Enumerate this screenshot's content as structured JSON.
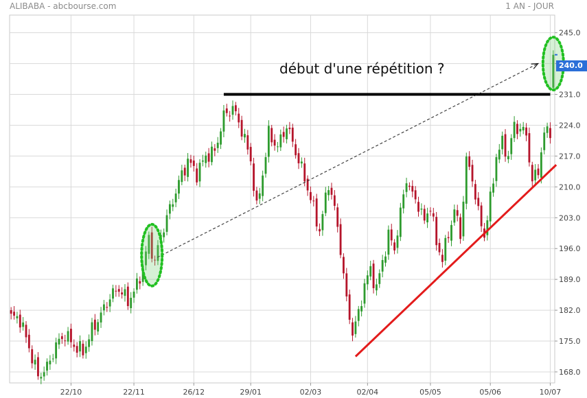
{
  "header": {
    "title": "ALIBABA - abcbourse.com",
    "period": "1 AN - JOUR"
  },
  "annotation": "début d'une répétition ?",
  "last_price": "240.0",
  "colors": {
    "up": "#2e9b2e",
    "down": "#b5152b",
    "grid": "#d9d9d9",
    "resistance": "#000000",
    "support": "#e31b1b",
    "highlight": "#22c022",
    "badge": "#2b6fd8"
  },
  "chart_data": {
    "type": "candlestick",
    "ylim": [
      165.5,
      249
    ],
    "y_ticks": [
      168.0,
      175.0,
      182.0,
      189.0,
      196.0,
      203.0,
      210.0,
      217.0,
      224.0,
      231.0,
      238.0,
      245.0
    ],
    "y_tick_labels": [
      "168.0",
      "175.0",
      "182.0",
      "189.0",
      "196.0",
      "203.0",
      "210.0",
      "217.0",
      "224.0",
      "231.0",
      "238.0",
      "245.0"
    ],
    "x_tick_labels": [
      "22/10",
      "22/11",
      "26/12",
      "29/01",
      "02/03",
      "02/04",
      "05/05",
      "05/06",
      "10/07"
    ],
    "x_tick_index": [
      20,
      41,
      61,
      80,
      100,
      119,
      140,
      160,
      180
    ],
    "grid": true,
    "anchors": [
      [
        0,
        180.5
      ],
      [
        3,
        180.0
      ],
      [
        6,
        173.5
      ],
      [
        9,
        167.0
      ],
      [
        12,
        169.0
      ],
      [
        15,
        174.0
      ],
      [
        18,
        176.5
      ],
      [
        21,
        174.0
      ],
      [
        24,
        172.5
      ],
      [
        27,
        177.5
      ],
      [
        30,
        181.0
      ],
      [
        33,
        185.0
      ],
      [
        36,
        187.0
      ],
      [
        39,
        184.0
      ],
      [
        42,
        187.5
      ],
      [
        44,
        192.0
      ],
      [
        46,
        198.0
      ],
      [
        48,
        193.0
      ],
      [
        50,
        199.0
      ],
      [
        53,
        205.0
      ],
      [
        56,
        211.0
      ],
      [
        59,
        216.0
      ],
      [
        62,
        213.0
      ],
      [
        65,
        217.0
      ],
      [
        68,
        218.0
      ],
      [
        71,
        226.0
      ],
      [
        74,
        228.0
      ],
      [
        77,
        223.0
      ],
      [
        80,
        216.0
      ],
      [
        82,
        205.0
      ],
      [
        84,
        213.0
      ],
      [
        86,
        222.0
      ],
      [
        89,
        219.0
      ],
      [
        92,
        224.0
      ],
      [
        95,
        218.0
      ],
      [
        98,
        212.0
      ],
      [
        101,
        205.0
      ],
      [
        103,
        200.0
      ],
      [
        106,
        211.0
      ],
      [
        108,
        205.0
      ],
      [
        110,
        196.0
      ],
      [
        112,
        184.0
      ],
      [
        114,
        177.0
      ],
      [
        116,
        181.0
      ],
      [
        118,
        188.0
      ],
      [
        120,
        191.0
      ],
      [
        122,
        187.0
      ],
      [
        124,
        193.0
      ],
      [
        126,
        199.0
      ],
      [
        128,
        196.0
      ],
      [
        130,
        204.0
      ],
      [
        132,
        212.0
      ],
      [
        134,
        208.0
      ],
      [
        136,
        206.0
      ],
      [
        138,
        202.0
      ],
      [
        140,
        206.0
      ],
      [
        142,
        197.0
      ],
      [
        144,
        194.0
      ],
      [
        146,
        199.0
      ],
      [
        148,
        205.0
      ],
      [
        150,
        199.0
      ],
      [
        152,
        216.0
      ],
      [
        154,
        212.0
      ],
      [
        156,
        204.0
      ],
      [
        158,
        199.0
      ],
      [
        160,
        207.0
      ],
      [
        162,
        217.0
      ],
      [
        164,
        220.0
      ],
      [
        166,
        217.0
      ],
      [
        168,
        224.0
      ],
      [
        170,
        223.0
      ],
      [
        172,
        222.0
      ],
      [
        174,
        211.0
      ],
      [
        176,
        214.0
      ],
      [
        178,
        222.0
      ],
      [
        180,
        223.0
      ]
    ],
    "last_candle": {
      "open": 232.5,
      "close": 240.0
    },
    "resistance_line": {
      "from": [
        71,
        231.0
      ],
      "to": [
        180,
        231.0
      ]
    },
    "support_line": {
      "from": [
        115,
        171.5
      ],
      "to": [
        182,
        215.0
      ]
    },
    "projection_arrow": {
      "from": [
        47,
        194.0
      ],
      "to": [
        175,
        238.0
      ]
    },
    "highlights": [
      {
        "center": [
          47,
          194.5
        ],
        "ry": 7.0
      },
      {
        "center": [
          181,
          238.0
        ],
        "ry": 6.0
      }
    ]
  }
}
